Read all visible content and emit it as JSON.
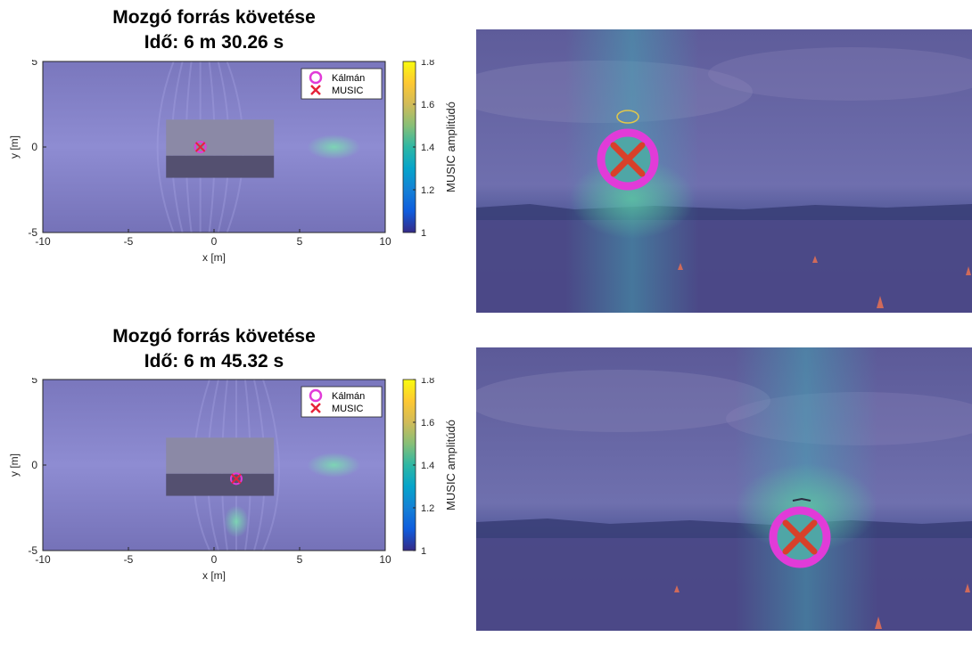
{
  "chart_data": [
    {
      "type": "heatmap",
      "title": "Mozgó forrás követése",
      "subtitle": "Idő: 6 m 30.26 s",
      "xlabel": "x [m]",
      "ylabel": "y [m]",
      "xlim": [
        -10,
        10
      ],
      "ylim": [
        -5,
        5
      ],
      "xticks": [
        -10,
        -5,
        0,
        5,
        10
      ],
      "yticks": [
        -5,
        0,
        5
      ],
      "colorbar": {
        "label": "MUSIC amplitúdó",
        "range": [
          1,
          1.8
        ],
        "ticks": [
          1,
          1.2,
          1.4,
          1.6,
          1.8
        ]
      },
      "legend": {
        "position": "top-right",
        "entries": [
          "Kálmán",
          "MUSIC"
        ]
      },
      "series": [
        {
          "name": "Kálmán",
          "x": [
            -0.8
          ],
          "y": [
            0
          ]
        },
        {
          "name": "MUSIC",
          "x": [
            -0.8
          ],
          "y": [
            0
          ]
        }
      ]
    },
    {
      "type": "heatmap",
      "title": "Mozgó forrás követése",
      "subtitle": "Idő: 6 m 45.32 s",
      "xlabel": "x [m]",
      "ylabel": "y [m]",
      "xlim": [
        -10,
        10
      ],
      "ylim": [
        -5,
        5
      ],
      "xticks": [
        -10,
        -5,
        0,
        5,
        10
      ],
      "yticks": [
        -5,
        0,
        5
      ],
      "colorbar": {
        "label": "MUSIC amplitúdó",
        "range": [
          1,
          1.8
        ],
        "ticks": [
          1,
          1.2,
          1.4,
          1.6,
          1.8
        ]
      },
      "legend": {
        "position": "top-right",
        "entries": [
          "Kálmán",
          "MUSIC"
        ]
      },
      "series": [
        {
          "name": "Kálmán",
          "x": [
            1.3
          ],
          "y": [
            -0.8
          ]
        },
        {
          "name": "MUSIC",
          "x": [
            1.3
          ],
          "y": [
            -0.8
          ]
        }
      ]
    }
  ]
}
